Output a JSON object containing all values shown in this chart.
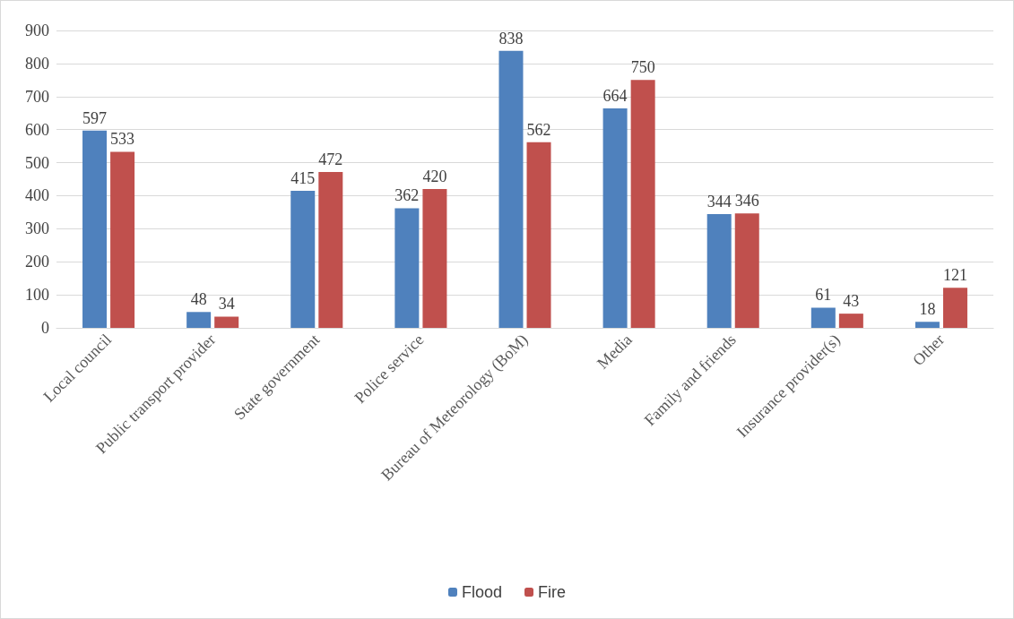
{
  "chart_data": {
    "type": "bar",
    "categories": [
      "Local council",
      "Public transport provider",
      "State government",
      "Police service",
      "Bureau of Meteorology (BoM)",
      "Media",
      "Family and friends",
      "Insurance provider(s)",
      "Other"
    ],
    "series": [
      {
        "name": "Flood",
        "color": "#4f81bd",
        "values": [
          597,
          48,
          415,
          362,
          838,
          664,
          344,
          61,
          18
        ]
      },
      {
        "name": "Fire",
        "color": "#c0504d",
        "values": [
          533,
          34,
          472,
          420,
          562,
          750,
          346,
          43,
          121
        ]
      }
    ],
    "ylim": [
      0,
      900
    ],
    "yticks": [
      0,
      100,
      200,
      300,
      400,
      500,
      600,
      700,
      800,
      900
    ],
    "grid": "y",
    "legend": "bottom",
    "data_labels": true
  }
}
